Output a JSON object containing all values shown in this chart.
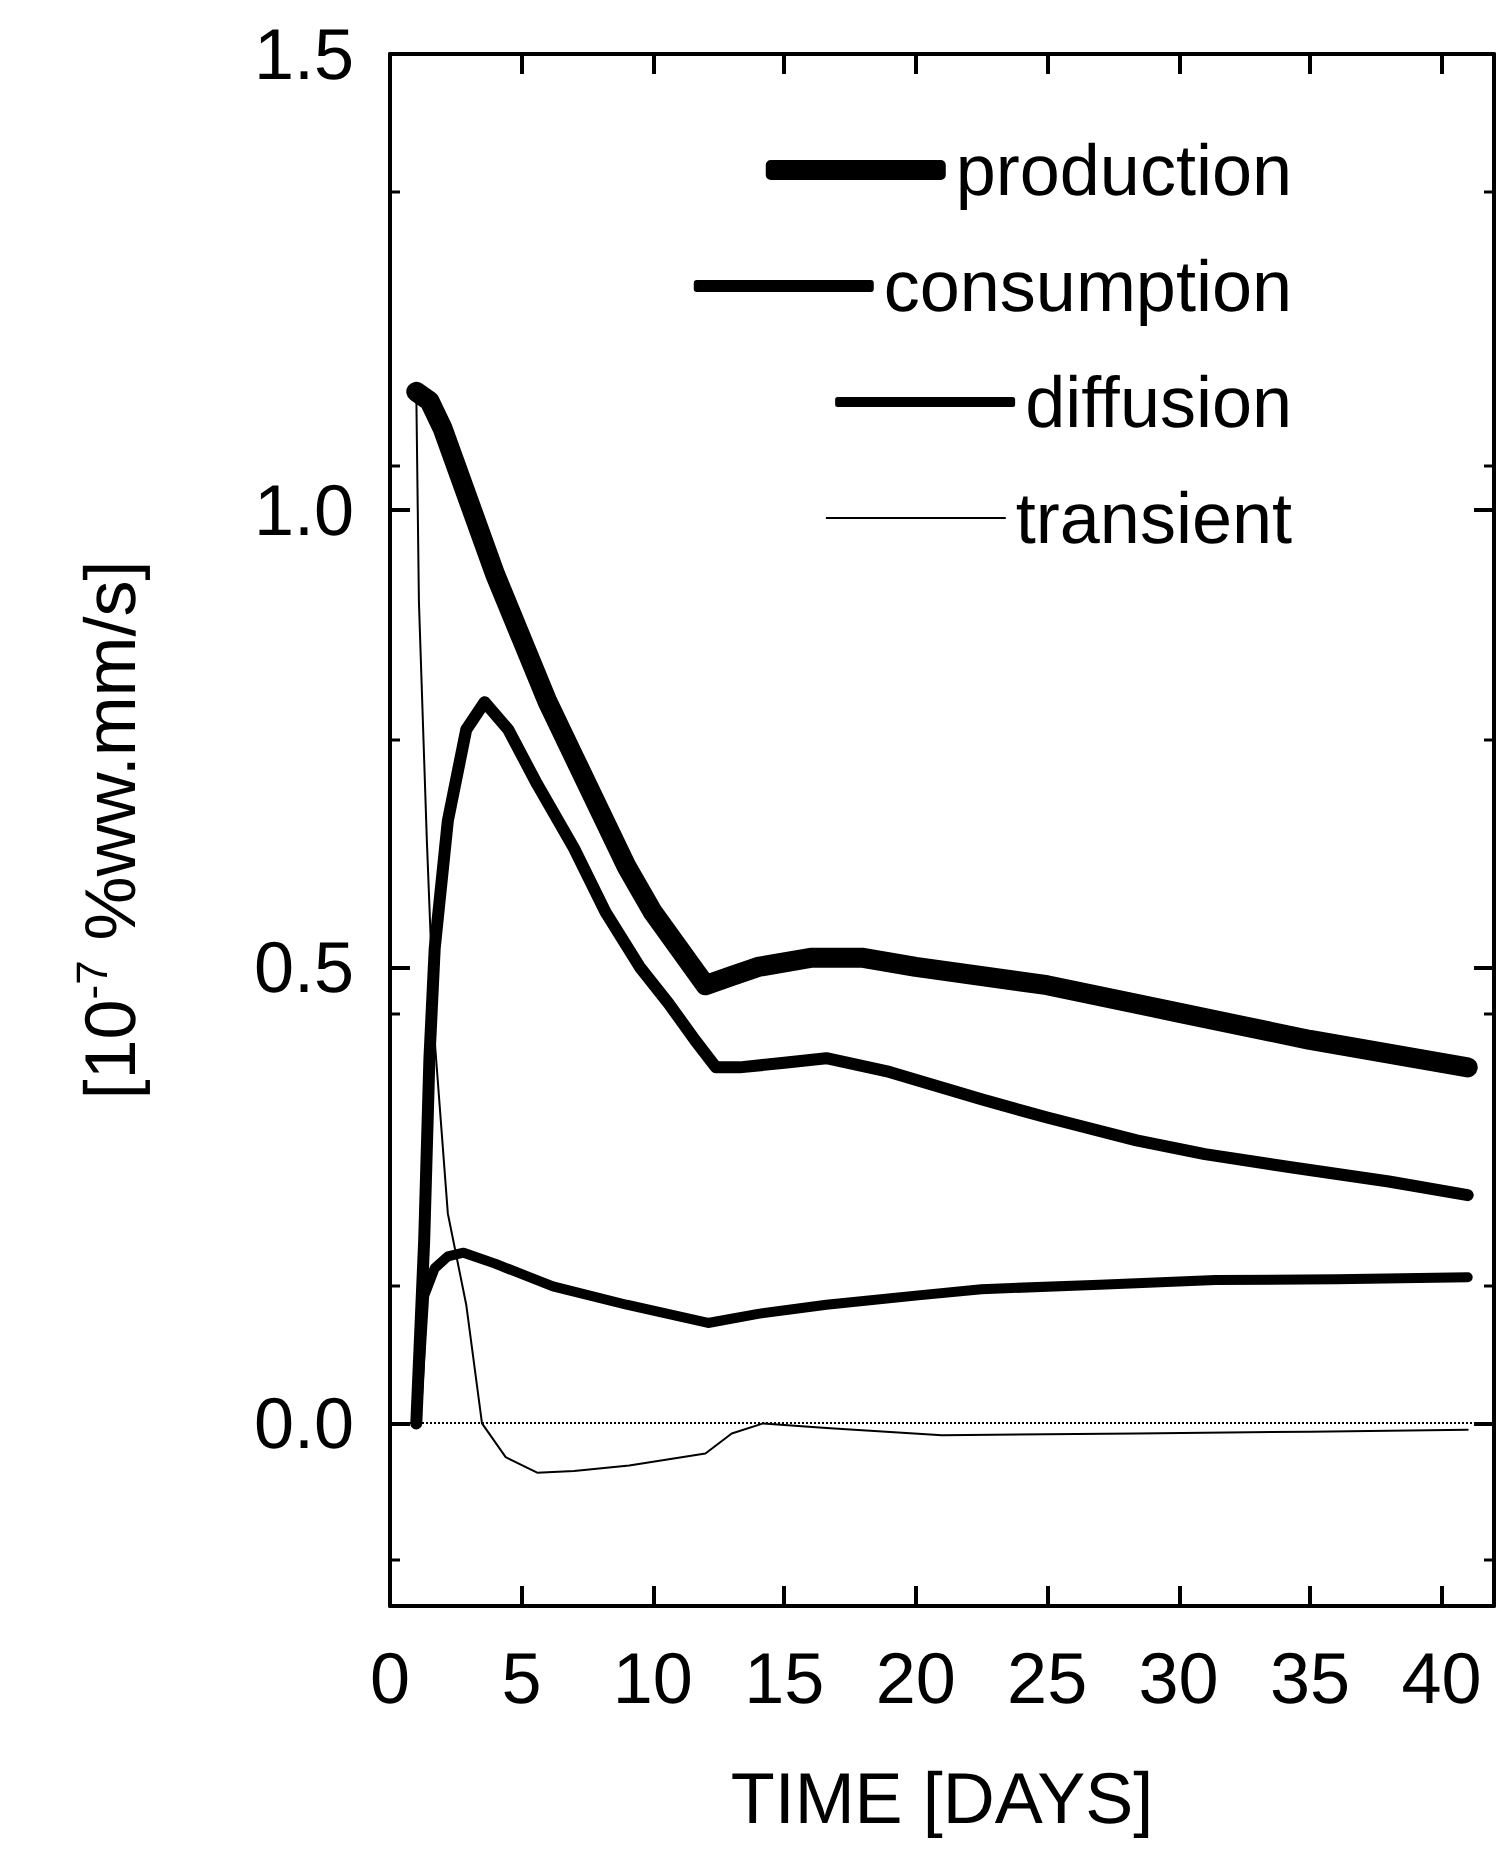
{
  "chart_data": {
    "type": "line",
    "xlabel": "TIME [DAYS]",
    "ylabel": "[10$^{-7}$ %ww.mm/s]",
    "xlim": [
      0,
      42
    ],
    "xticks": [
      0,
      5,
      10,
      15,
      20,
      25,
      30,
      35,
      40
    ],
    "ylim": [
      -0.2,
      1.5
    ],
    "yticks": [
      {
        "value": -0.2,
        "label": null
      },
      {
        "value": 0,
        "label": "0.0"
      },
      0.5,
      {
        "value": 1,
        "label": "1.0"
      },
      1.5
    ],
    "legend": "top right",
    "grid": false,
    "marker": "none",
    "line_style": "solid",
    "ref_lines": [
      {
        "axis": "y",
        "value": 0,
        "color": "#000000",
        "line_style": "dotted"
      }
    ],
    "series": [
      {
        "name": "production",
        "color": "#000000",
        "x": [
          1,
          1.5,
          2,
          3,
          4,
          5,
          6,
          7,
          8,
          9,
          10,
          11,
          12,
          13,
          14,
          16,
          18,
          20,
          25,
          30,
          35,
          41
        ],
        "values": [
          1.13,
          1.12,
          1.09,
          1.01,
          0.93,
          0.86,
          0.79,
          0.73,
          0.67,
          0.61,
          0.56,
          0.52,
          0.48,
          0.49,
          0.5,
          0.51,
          0.51,
          0.5,
          0.48,
          0.45,
          0.42,
          0.39
        ]
      },
      {
        "name": "consumption",
        "color": "#000000",
        "x": [
          1,
          1.3,
          1.5,
          1.7,
          2.2,
          2.9,
          3.6,
          4.5,
          5.6,
          7,
          8.2,
          9.5,
          10.6,
          11.6,
          12.4,
          13.3,
          15,
          16.6,
          19,
          22.5,
          25,
          28.4,
          31,
          34.4,
          38,
          41
        ],
        "values": [
          0,
          0.2,
          0.4,
          0.52,
          0.66,
          0.76,
          0.79,
          0.76,
          0.7,
          0.63,
          0.56,
          0.5,
          0.46,
          0.42,
          0.39,
          0.39,
          0.395,
          0.4,
          0.385,
          0.355,
          0.335,
          0.31,
          0.295,
          0.28,
          0.265,
          0.25
        ]
      },
      {
        "name": "diffusion",
        "color": "#000000",
        "x": [
          1,
          1.3,
          1.7,
          2.2,
          2.8,
          4,
          6.2,
          9,
          12.1,
          14,
          16.6,
          20,
          22.5,
          27,
          31.4,
          36,
          41
        ],
        "values": [
          0,
          0.14,
          0.17,
          0.183,
          0.187,
          0.175,
          0.15,
          0.13,
          0.11,
          0.12,
          0.13,
          0.14,
          0.147,
          0.152,
          0.157,
          0.158,
          0.16
        ]
      },
      {
        "name": "transient",
        "color": "#000000",
        "x": [
          1,
          1.1,
          1.4,
          1.7,
          2.2,
          2.9,
          3.5,
          4.4,
          5.6,
          7,
          9.1,
          12,
          13,
          14.2,
          16.6,
          21,
          28.4,
          35,
          41
        ],
        "values": [
          1.13,
          0.9,
          0.64,
          0.42,
          0.23,
          0.13,
          0,
          -0.037,
          -0.054,
          -0.052,
          -0.046,
          -0.033,
          -0.011,
          0,
          -0.005,
          -0.013,
          -0.011,
          -0.009,
          -0.007
        ]
      }
    ]
  }
}
